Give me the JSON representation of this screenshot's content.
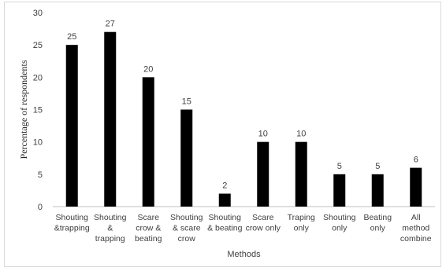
{
  "chart_data": {
    "type": "bar",
    "categories": [
      [
        "Shouting",
        "&trapping"
      ],
      [
        "Shouting",
        "&",
        "trapping"
      ],
      [
        "Scare",
        "crow &",
        "beating"
      ],
      [
        "Shouting",
        "& scare",
        "crow"
      ],
      [
        "Shouting",
        "& beating"
      ],
      [
        "Scare",
        "crow only"
      ],
      [
        "Traping",
        "only"
      ],
      [
        "Shouting",
        "only"
      ],
      [
        "Beating",
        "only"
      ],
      [
        "All",
        "method",
        "combine"
      ]
    ],
    "values": [
      25,
      27,
      20,
      15,
      2,
      10,
      10,
      5,
      5,
      6
    ],
    "data_labels": [
      "25",
      "27",
      "20",
      "15",
      "2",
      "10",
      "10",
      "5",
      "5",
      "6"
    ],
    "xlabel": "Methods",
    "ylabel": "Percentage of respondents",
    "ylim": [
      0,
      30
    ],
    "yticks": [
      0,
      5,
      10,
      15,
      20,
      25,
      30
    ],
    "grid": false,
    "bar_color": "#000000",
    "axis_color": "#bfbfbf",
    "text_color": "#404040"
  }
}
